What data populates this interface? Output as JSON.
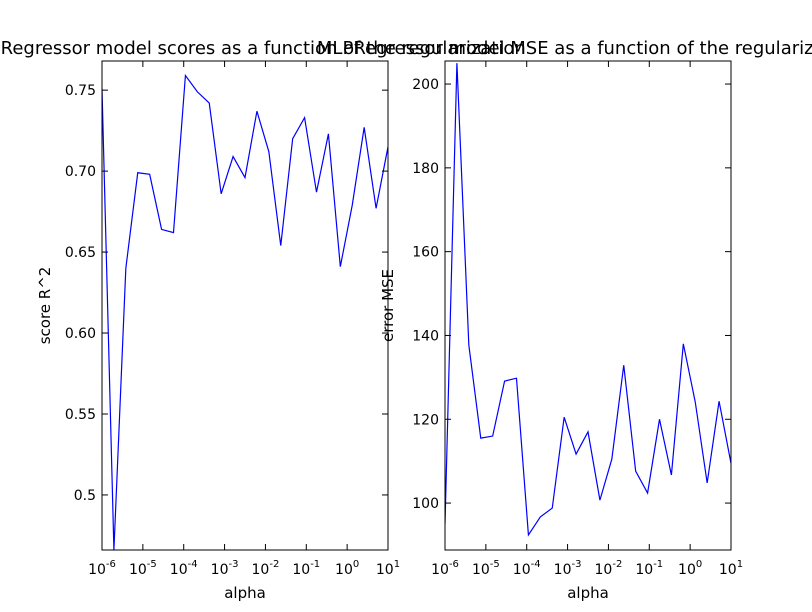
{
  "chart_data": [
    {
      "type": "line",
      "title": "MLPRegressor model scores as a function of the regularization",
      "xlabel": "alpha",
      "ylabel": "score R^2",
      "xscale": "log",
      "x": [
        1e-06,
        1.957e-06,
        3.83e-06,
        7.5e-06,
        1.468e-05,
        2.873e-05,
        5.62e-05,
        0.0001101,
        0.0002154,
        0.0004217,
        0.000825,
        0.001615,
        0.003162,
        0.00619,
        0.01212,
        0.02371,
        0.04642,
        0.0909,
        0.1778,
        0.348,
        0.681,
        1.334,
        2.61,
        5.109,
        10
      ],
      "series": [
        {
          "color": "#0000ff",
          "values": [
            0.751,
            0.466,
            0.64,
            0.699,
            0.698,
            0.664,
            0.662,
            0.759,
            0.749,
            0.742,
            0.686,
            0.709,
            0.696,
            0.737,
            0.712,
            0.654,
            0.72,
            0.733,
            0.687,
            0.723,
            0.641,
            0.679,
            0.727,
            0.677,
            0.715
          ]
        }
      ],
      "xlim": [
        1e-06,
        10
      ],
      "xticks": [
        {
          "value": 1e-06,
          "label": "10^-6"
        },
        {
          "value": 1e-05,
          "label": "10^-5"
        },
        {
          "value": 0.0001,
          "label": "10^-4"
        },
        {
          "value": 0.001,
          "label": "10^-3"
        },
        {
          "value": 0.01,
          "label": "10^-2"
        },
        {
          "value": 0.1,
          "label": "10^-1"
        },
        {
          "value": 1,
          "label": "10^0"
        },
        {
          "value": 10,
          "label": "10^1"
        }
      ],
      "ylim": [
        0.466,
        0.768
      ],
      "yticks": [
        0.5,
        0.55,
        {
          "value": 0.6,
          "label": "0.60"
        },
        0.65,
        {
          "value": 0.7,
          "label": "0.70"
        },
        0.75
      ]
    },
    {
      "type": "line",
      "title": "MLPRegressor model MSE as a function of the regularization",
      "xlabel": "alpha",
      "ylabel": "error MSE",
      "xscale": "log",
      "x": [
        1e-06,
        1.957e-06,
        3.83e-06,
        7.5e-06,
        1.468e-05,
        2.873e-05,
        5.62e-05,
        0.0001101,
        0.0002154,
        0.0004217,
        0.000825,
        0.001615,
        0.003162,
        0.00619,
        0.01212,
        0.02371,
        0.04642,
        0.0909,
        0.1778,
        0.348,
        0.681,
        1.334,
        2.61,
        5.109,
        10
      ],
      "series": [
        {
          "color": "#0000ff",
          "values": [
            95,
            205,
            137.7,
            115.5,
            116,
            129.1,
            129.8,
            92.4,
            96.7,
            98.8,
            120.5,
            111.7,
            117,
            100.7,
            110.5,
            132.9,
            107.6,
            102.4,
            120,
            106.7,
            138,
            124.1,
            104.8,
            124.3,
            109.5
          ]
        }
      ],
      "xlim": [
        1e-06,
        10
      ],
      "xticks": [
        {
          "value": 1e-06,
          "label": "10^-6"
        },
        {
          "value": 1e-05,
          "label": "10^-5"
        },
        {
          "value": 0.0001,
          "label": "10^-4"
        },
        {
          "value": 0.001,
          "label": "10^-3"
        },
        {
          "value": 0.01,
          "label": "10^-2"
        },
        {
          "value": 0.1,
          "label": "10^-1"
        },
        {
          "value": 1,
          "label": "10^0"
        },
        {
          "value": 10,
          "label": "10^1"
        }
      ],
      "ylim": [
        88.8,
        205.5
      ],
      "yticks": [
        100,
        120,
        140,
        160,
        180,
        200
      ]
    }
  ]
}
